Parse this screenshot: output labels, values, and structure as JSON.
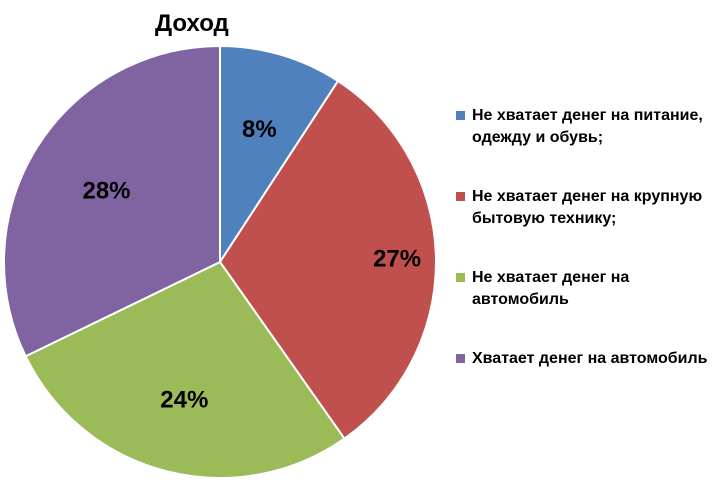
{
  "chart_data": {
    "type": "pie",
    "title": "Доход",
    "categories": [
      "Не хватает денег на питание, одежду и обувь;",
      "Не хватает денег на крупную бытовую технику;",
      "Не хватает денег на автомобиль",
      "Хватает денег на автомобиль"
    ],
    "values": [
      8,
      27,
      24,
      28
    ],
    "labels": [
      "8%",
      "27%",
      "24%",
      "28%"
    ],
    "colors": [
      "#4f81bd",
      "#c0504d",
      "#9bbb59",
      "#8064a2"
    ],
    "legend_position": "right"
  }
}
